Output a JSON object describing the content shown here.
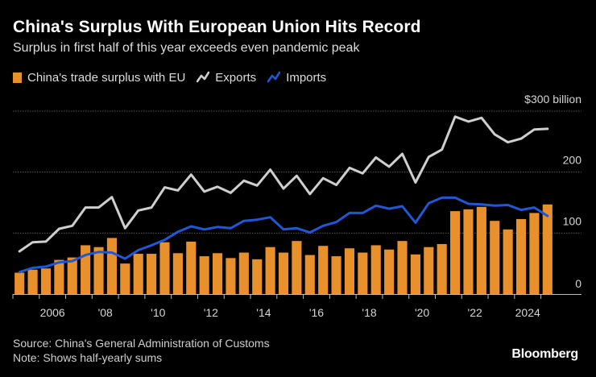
{
  "header": {
    "title": "China's Surplus With European Union Hits Record",
    "subtitle": "Surplus in first half of this year exceeds even pandemic peak"
  },
  "legend": {
    "surplus_label": "China's trade surplus with EU",
    "exports_label": "Exports",
    "imports_label": "Imports"
  },
  "footer": {
    "source": "Source: China's General Administration of Customs",
    "note": "Note: Shows half-yearly sums",
    "logo": "Bloomberg"
  },
  "colors": {
    "surplus": "#e8902c",
    "exports": "#cfcfcf",
    "imports": "#1f57d6",
    "grid": "#555555"
  },
  "chart_data": {
    "type": "bar",
    "title": "China's Surplus With European Union Hits Record",
    "subtitle": "Surplus in first half of this year exceeds even pandemic peak",
    "xlabel": "",
    "ylabel": "",
    "ylim": [
      0,
      300
    ],
    "y_ticks": [
      0,
      100,
      200,
      300
    ],
    "y_tick_labels": [
      "0",
      "100",
      "200",
      "$300 billion"
    ],
    "x_tick_labels": [
      "2006",
      "'08",
      "'10",
      "'12",
      "'14",
      "'16",
      "'18",
      "'20",
      "'22",
      "2024"
    ],
    "x_tick_years": [
      2006,
      2008,
      2010,
      2012,
      2014,
      2016,
      2018,
      2020,
      2022,
      2024
    ],
    "periods": [
      "2005 H1",
      "2005 H2",
      "2006 H1",
      "2006 H2",
      "2007 H1",
      "2007 H2",
      "2008 H1",
      "2008 H2",
      "2009 H1",
      "2009 H2",
      "2010 H1",
      "2010 H2",
      "2011 H1",
      "2011 H2",
      "2012 H1",
      "2012 H2",
      "2013 H1",
      "2013 H2",
      "2014 H1",
      "2014 H2",
      "2015 H1",
      "2015 H2",
      "2016 H1",
      "2016 H2",
      "2017 H1",
      "2017 H2",
      "2018 H1",
      "2018 H2",
      "2019 H1",
      "2019 H2",
      "2020 H1",
      "2020 H2",
      "2021 H1",
      "2021 H2",
      "2022 H1",
      "2022 H2",
      "2023 H1",
      "2023 H2",
      "2024 H1",
      "2024 H2",
      "2025 H1"
    ],
    "series": [
      {
        "name": "China's trade surplus with EU",
        "type": "bar",
        "values": [
          35,
          40,
          42,
          56,
          60,
          80,
          77,
          92,
          50,
          66,
          66,
          85,
          67,
          86,
          62,
          67,
          59,
          68,
          57,
          77,
          68,
          87,
          64,
          79,
          62,
          75,
          68,
          80,
          73,
          87,
          65,
          77,
          82,
          136,
          139,
          143,
          120,
          106,
          123,
          133,
          147
        ]
      },
      {
        "name": "Exports",
        "type": "line",
        "values": [
          70,
          85,
          86,
          107,
          112,
          142,
          142,
          159,
          108,
          137,
          142,
          175,
          170,
          196,
          168,
          176,
          166,
          186,
          178,
          204,
          173,
          194,
          164,
          190,
          179,
          207,
          198,
          224,
          209,
          230,
          183,
          225,
          237,
          291,
          283,
          289,
          262,
          249,
          255,
          270,
          271
        ]
      },
      {
        "name": "Imports",
        "type": "line",
        "values": [
          36,
          43,
          45,
          52,
          54,
          64,
          69,
          68,
          58,
          72,
          80,
          89,
          102,
          111,
          106,
          110,
          108,
          120,
          122,
          126,
          106,
          108,
          101,
          112,
          118,
          133,
          133,
          145,
          140,
          144,
          117,
          149,
          158,
          158,
          148,
          147,
          145,
          146,
          138,
          142,
          128
        ]
      }
    ]
  }
}
